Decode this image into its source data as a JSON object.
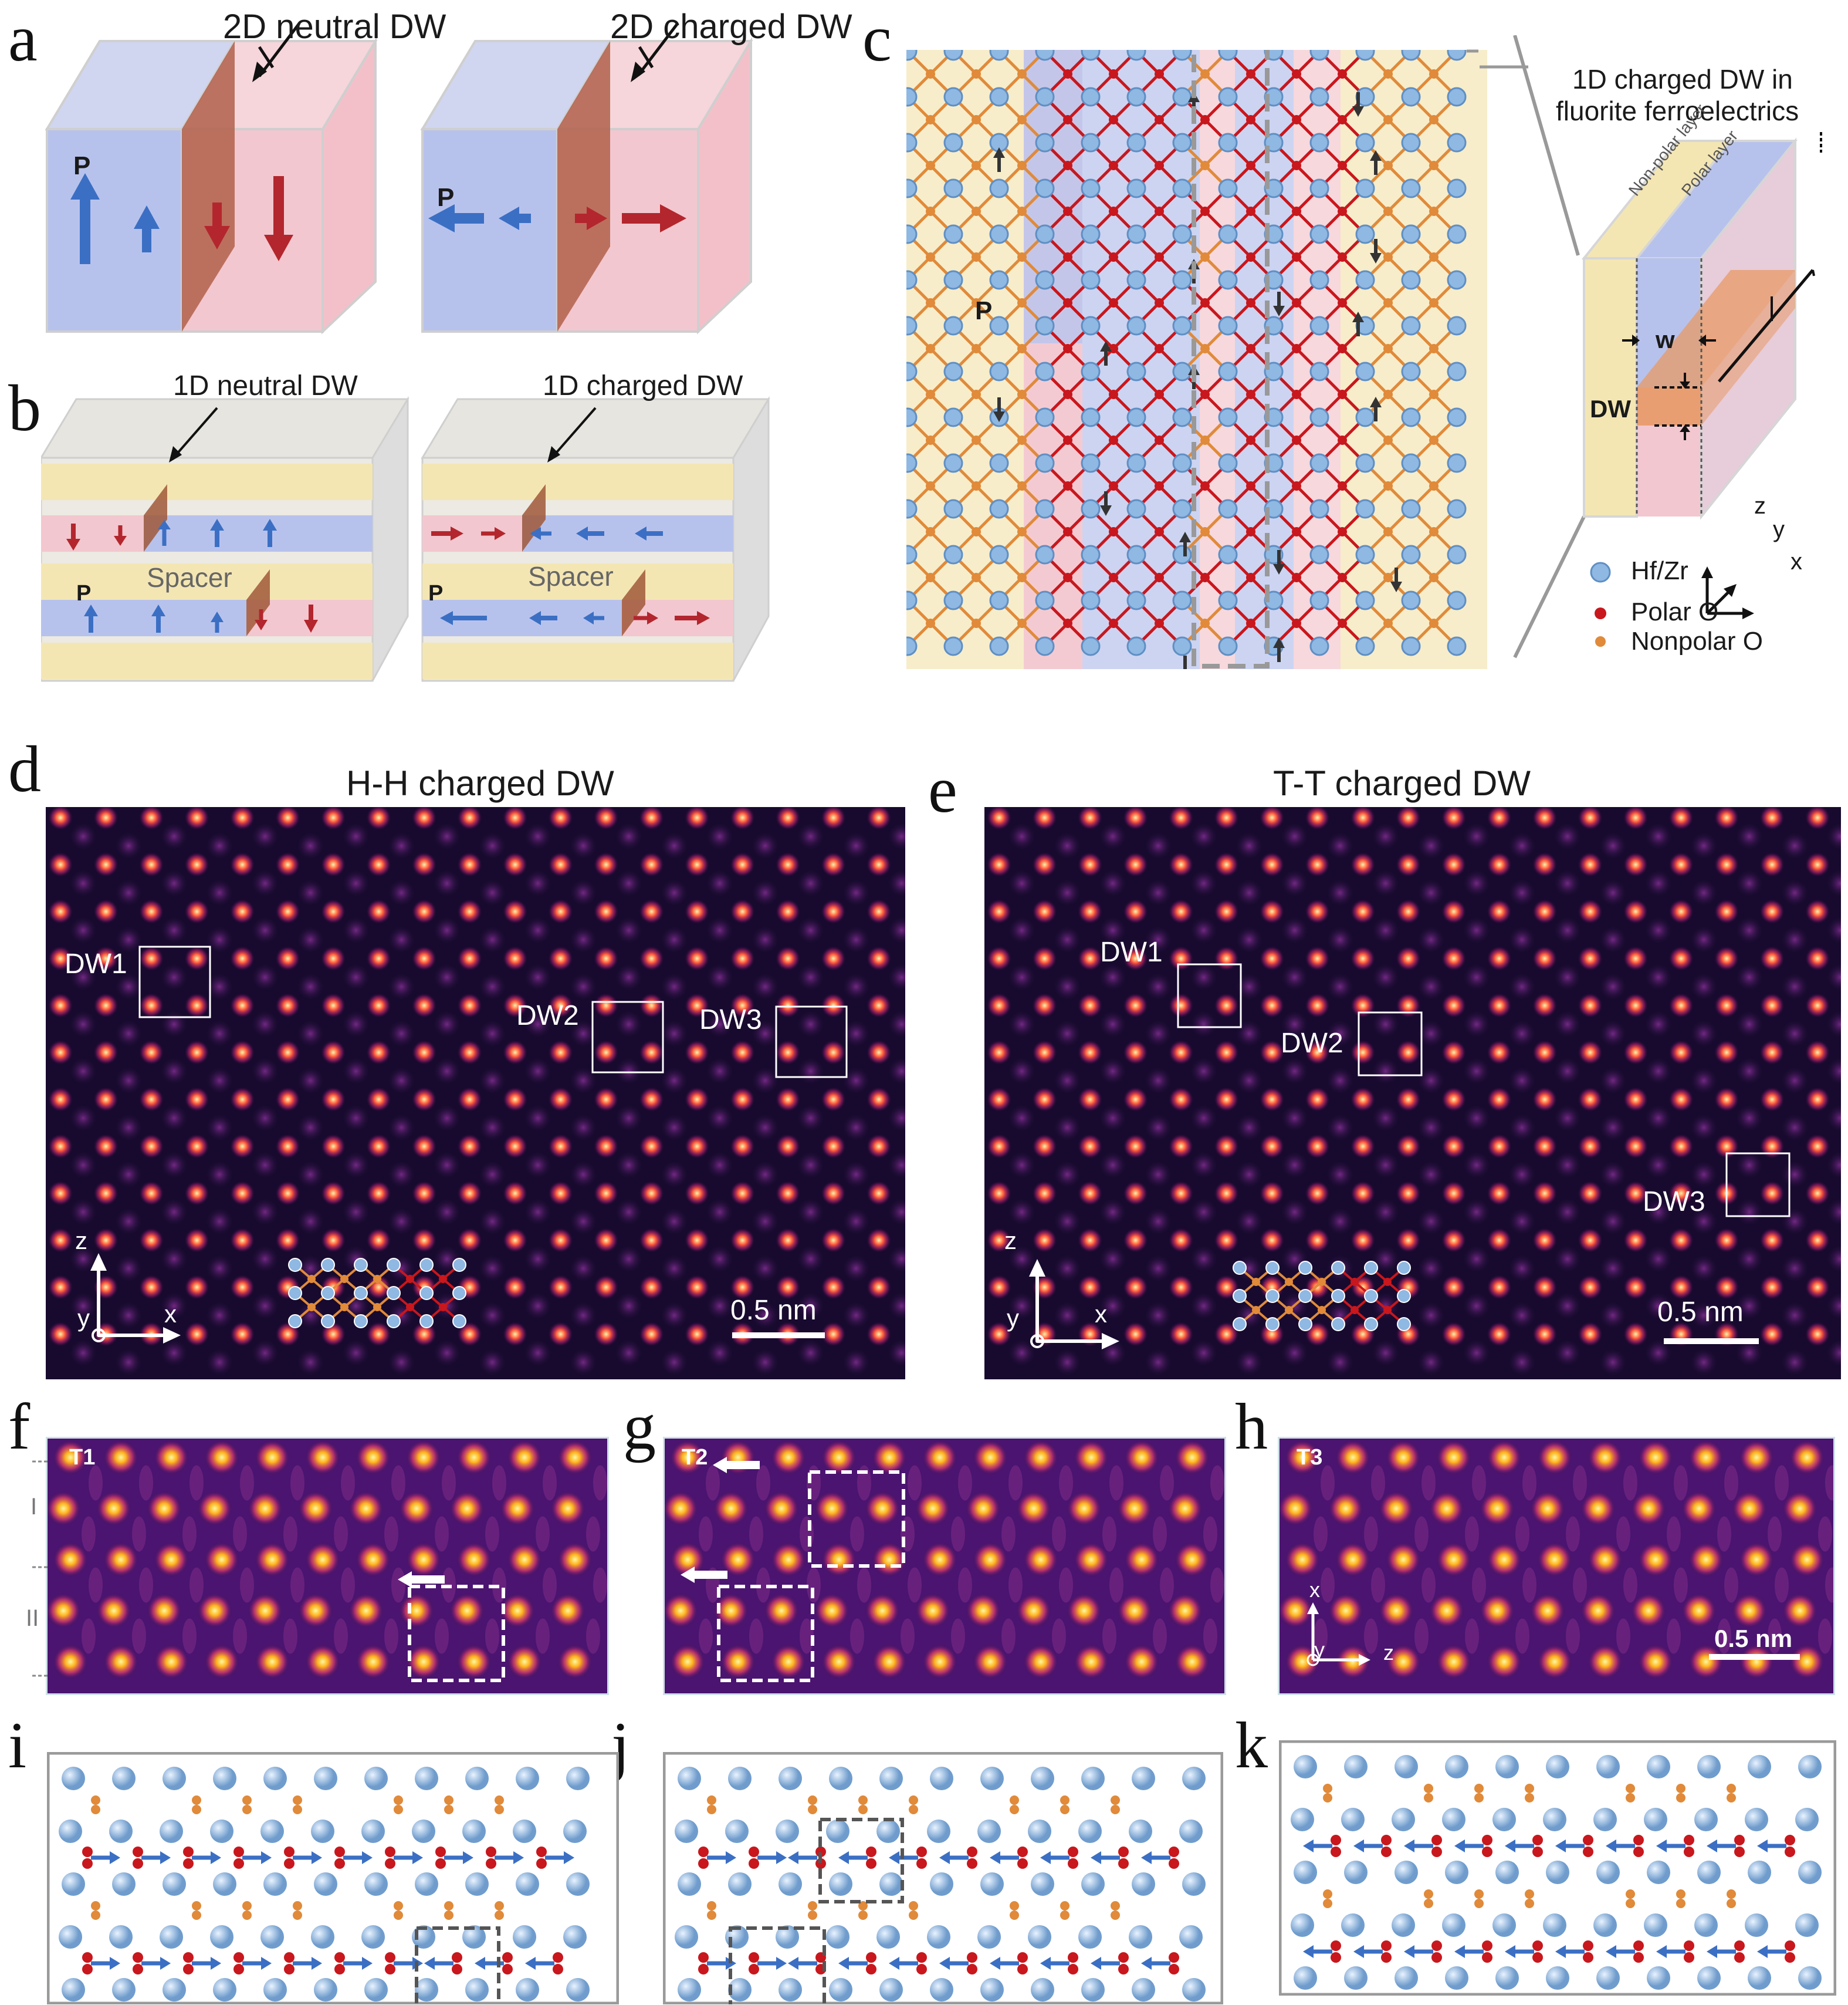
{
  "panels": {
    "a": "a",
    "b": "b",
    "c": "c",
    "d": "d",
    "e": "e",
    "f": "f",
    "g": "g",
    "h": "h",
    "i": "i",
    "j": "j",
    "k": "k"
  },
  "panel_a": {
    "left_title": "2D neutral DW",
    "right_title": "2D charged DW",
    "p_label": "P"
  },
  "panel_b": {
    "left_title": "1D neutral DW",
    "right_title": "1D charged DW",
    "spacer_label": "Spacer",
    "p_label": "P"
  },
  "panel_c": {
    "title_line1": "1D charged DW in",
    "title_line2": "fluorite ferroelectrics",
    "nonpolar_layer": "Non-polar layer",
    "polar_layer": "Polar layer",
    "w_label": "w",
    "dw_label": "DW",
    "p_label": "P",
    "axis_z": "z",
    "axis_y": "y",
    "axis_x": "x",
    "legend": [
      {
        "label": "Hf/Zr",
        "color": "#8fb8e3"
      },
      {
        "label": "Polar O",
        "color": "#c8171d"
      },
      {
        "label": "Nonpolar O",
        "color": "#e08a3a"
      }
    ]
  },
  "panel_d": {
    "title": "H-H charged DW",
    "boxes": [
      "DW1",
      "DW2",
      "DW3"
    ],
    "scale_bar": "0.5 nm",
    "axis_z": "z",
    "axis_y": "y",
    "axis_x": "x"
  },
  "panel_e": {
    "title": "T-T charged DW",
    "boxes": [
      "DW1",
      "DW2",
      "DW3"
    ],
    "scale_bar": "0.5 nm",
    "axis_z": "z",
    "axis_y": "y",
    "axis_x": "x"
  },
  "panel_f": {
    "tag": "T1",
    "region_1": "I",
    "region_2": "II"
  },
  "panel_g": {
    "tag": "T2"
  },
  "panel_h": {
    "tag": "T3",
    "scale_bar": "0.5 nm",
    "axis_x": "x",
    "axis_y": "y",
    "axis_z": "z"
  },
  "colors": {
    "blue_domain": "#b7c2ec",
    "red_domain": "#f3c7cf",
    "yellow_layer": "#f4e6b3",
    "up_arrow": "#3b6fc4",
    "down_arrow": "#b3262d",
    "hfzr": "#8fb8e3",
    "polar_o": "#c8171d",
    "nonpolar_o": "#e08a3a",
    "stem_bg": "#170a2e"
  }
}
